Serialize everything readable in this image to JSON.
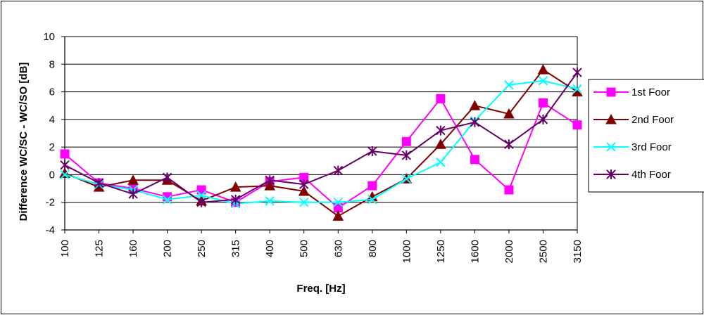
{
  "chart_data": {
    "type": "line",
    "title": "",
    "xlabel": "Freq. [Hz]",
    "ylabel": "Difference WC/SC - WC/SO [dB]",
    "categories": [
      "100",
      "125",
      "160",
      "200",
      "250",
      "315",
      "400",
      "500",
      "630",
      "800",
      "1000",
      "1250",
      "1600",
      "2000",
      "2500",
      "3150"
    ],
    "ylim": [
      -4,
      10
    ],
    "yticks": [
      -4,
      -2,
      0,
      2,
      4,
      6,
      8,
      10
    ],
    "grid": "horizontal",
    "legend_position": "right",
    "series": [
      {
        "name": "1st Foor",
        "color": "#ff00ff",
        "marker": "square",
        "values": [
          1.5,
          -0.6,
          -1.0,
          -1.6,
          -1.1,
          -2.0,
          -0.5,
          -0.2,
          -2.4,
          -0.8,
          2.4,
          5.5,
          1.1,
          -1.1,
          5.2,
          3.6
        ]
      },
      {
        "name": "2nd Foor",
        "color": "#800000",
        "marker": "triangle",
        "values": [
          0.1,
          -0.9,
          -0.4,
          -0.4,
          -1.9,
          -0.9,
          -0.8,
          -1.2,
          -3.0,
          -1.6,
          -0.3,
          2.2,
          5.0,
          4.4,
          7.6,
          6.0
        ]
      },
      {
        "name": "3rd Foor",
        "color": "#00ffff",
        "marker": "x",
        "values": [
          0.0,
          -0.7,
          -1.1,
          -1.8,
          -1.5,
          -2.1,
          -1.9,
          -2.0,
          -2.0,
          -1.8,
          -0.3,
          0.9,
          3.9,
          6.5,
          6.8,
          6.2
        ]
      },
      {
        "name": "4th Foor",
        "color": "#660066",
        "marker": "star",
        "values": [
          0.7,
          -0.6,
          -1.4,
          -0.2,
          -2.0,
          -1.8,
          -0.4,
          -0.7,
          0.3,
          1.7,
          1.4,
          3.2,
          3.8,
          2.2,
          4.0,
          7.4
        ]
      }
    ]
  }
}
